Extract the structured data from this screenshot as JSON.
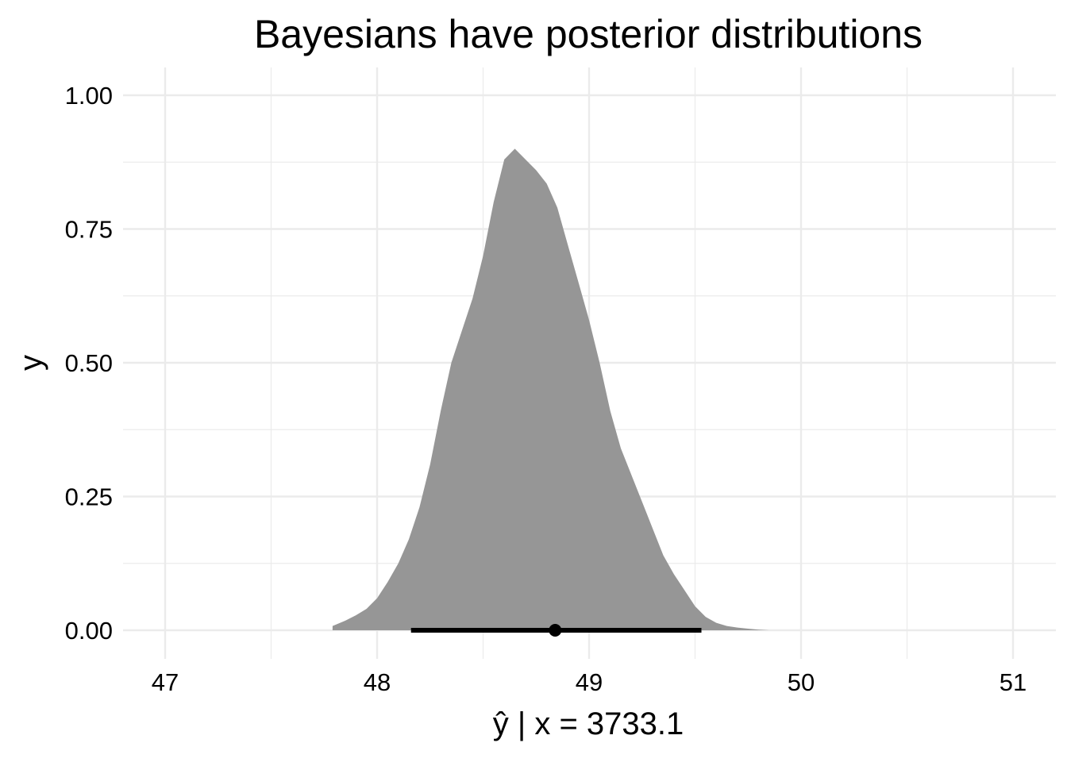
{
  "chart_data": {
    "type": "area",
    "title": "Bayesians have posterior distributions",
    "xlabel": "ŷ | x = 3733.1",
    "ylabel": "y",
    "xlim": [
      46.9,
      51.1
    ],
    "ylim": [
      -0.04,
      1.05
    ],
    "x_ticks": [
      47,
      48,
      49,
      50,
      51
    ],
    "x_tick_labels": [
      "47",
      "48",
      "49",
      "50",
      "51"
    ],
    "x_minor_ticks": [
      47.5,
      48.5,
      49.5,
      50.5
    ],
    "y_ticks": [
      0,
      0.25,
      0.5,
      0.75,
      1
    ],
    "y_tick_labels": [
      "0.00",
      "0.25",
      "0.50",
      "0.75",
      "1.00"
    ],
    "y_minor_ticks": [
      0.125,
      0.375,
      0.625,
      0.875
    ],
    "grid": true,
    "legend": "none",
    "colors": {
      "density_fill": "#969696",
      "interval": "#000000",
      "grid": "#ebebeb"
    },
    "density": {
      "x": [
        47.79,
        47.85,
        47.9,
        47.95,
        48.0,
        48.05,
        48.1,
        48.15,
        48.2,
        48.25,
        48.3,
        48.35,
        48.4,
        48.45,
        48.5,
        48.55,
        48.6,
        48.65,
        48.7,
        48.75,
        48.8,
        48.85,
        48.9,
        48.95,
        49.0,
        49.05,
        49.1,
        49.15,
        49.2,
        49.25,
        49.3,
        49.35,
        49.4,
        49.45,
        49.5,
        49.55,
        49.6,
        49.65,
        49.7,
        49.75,
        49.8,
        49.85,
        49.9,
        49.95,
        50.0,
        50.05,
        50.1
      ],
      "y": [
        0.008,
        0.018,
        0.028,
        0.04,
        0.06,
        0.09,
        0.125,
        0.17,
        0.23,
        0.31,
        0.41,
        0.5,
        0.56,
        0.62,
        0.7,
        0.8,
        0.88,
        0.9,
        0.88,
        0.86,
        0.835,
        0.79,
        0.72,
        0.65,
        0.58,
        0.5,
        0.41,
        0.34,
        0.29,
        0.24,
        0.19,
        0.14,
        0.105,
        0.075,
        0.045,
        0.025,
        0.014,
        0.008,
        0.005,
        0.003,
        0.001,
        0.0,
        0.0,
        0.0,
        0.0,
        0.0,
        0.0
      ]
    },
    "point_estimate": 48.84,
    "interval": [
      48.16,
      49.53
    ]
  }
}
